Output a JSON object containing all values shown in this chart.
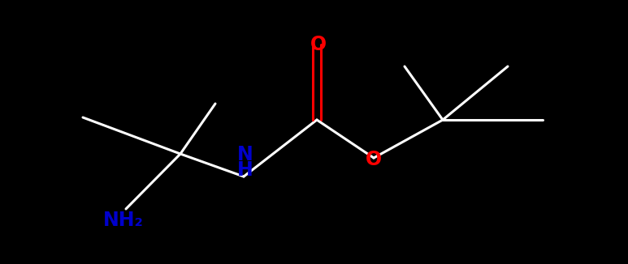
{
  "bg_color": "#000000",
  "bond_color": "#ffffff",
  "N_color": "#0000cc",
  "O_color": "#ff0000",
  "NH2_label": "NH₂",
  "NH_label": "NH",
  "O_label": "O",
  "fig_width": 7.73,
  "fig_height": 3.26,
  "dpi": 100,
  "bond_lw": 2.2,
  "font_size": 17
}
